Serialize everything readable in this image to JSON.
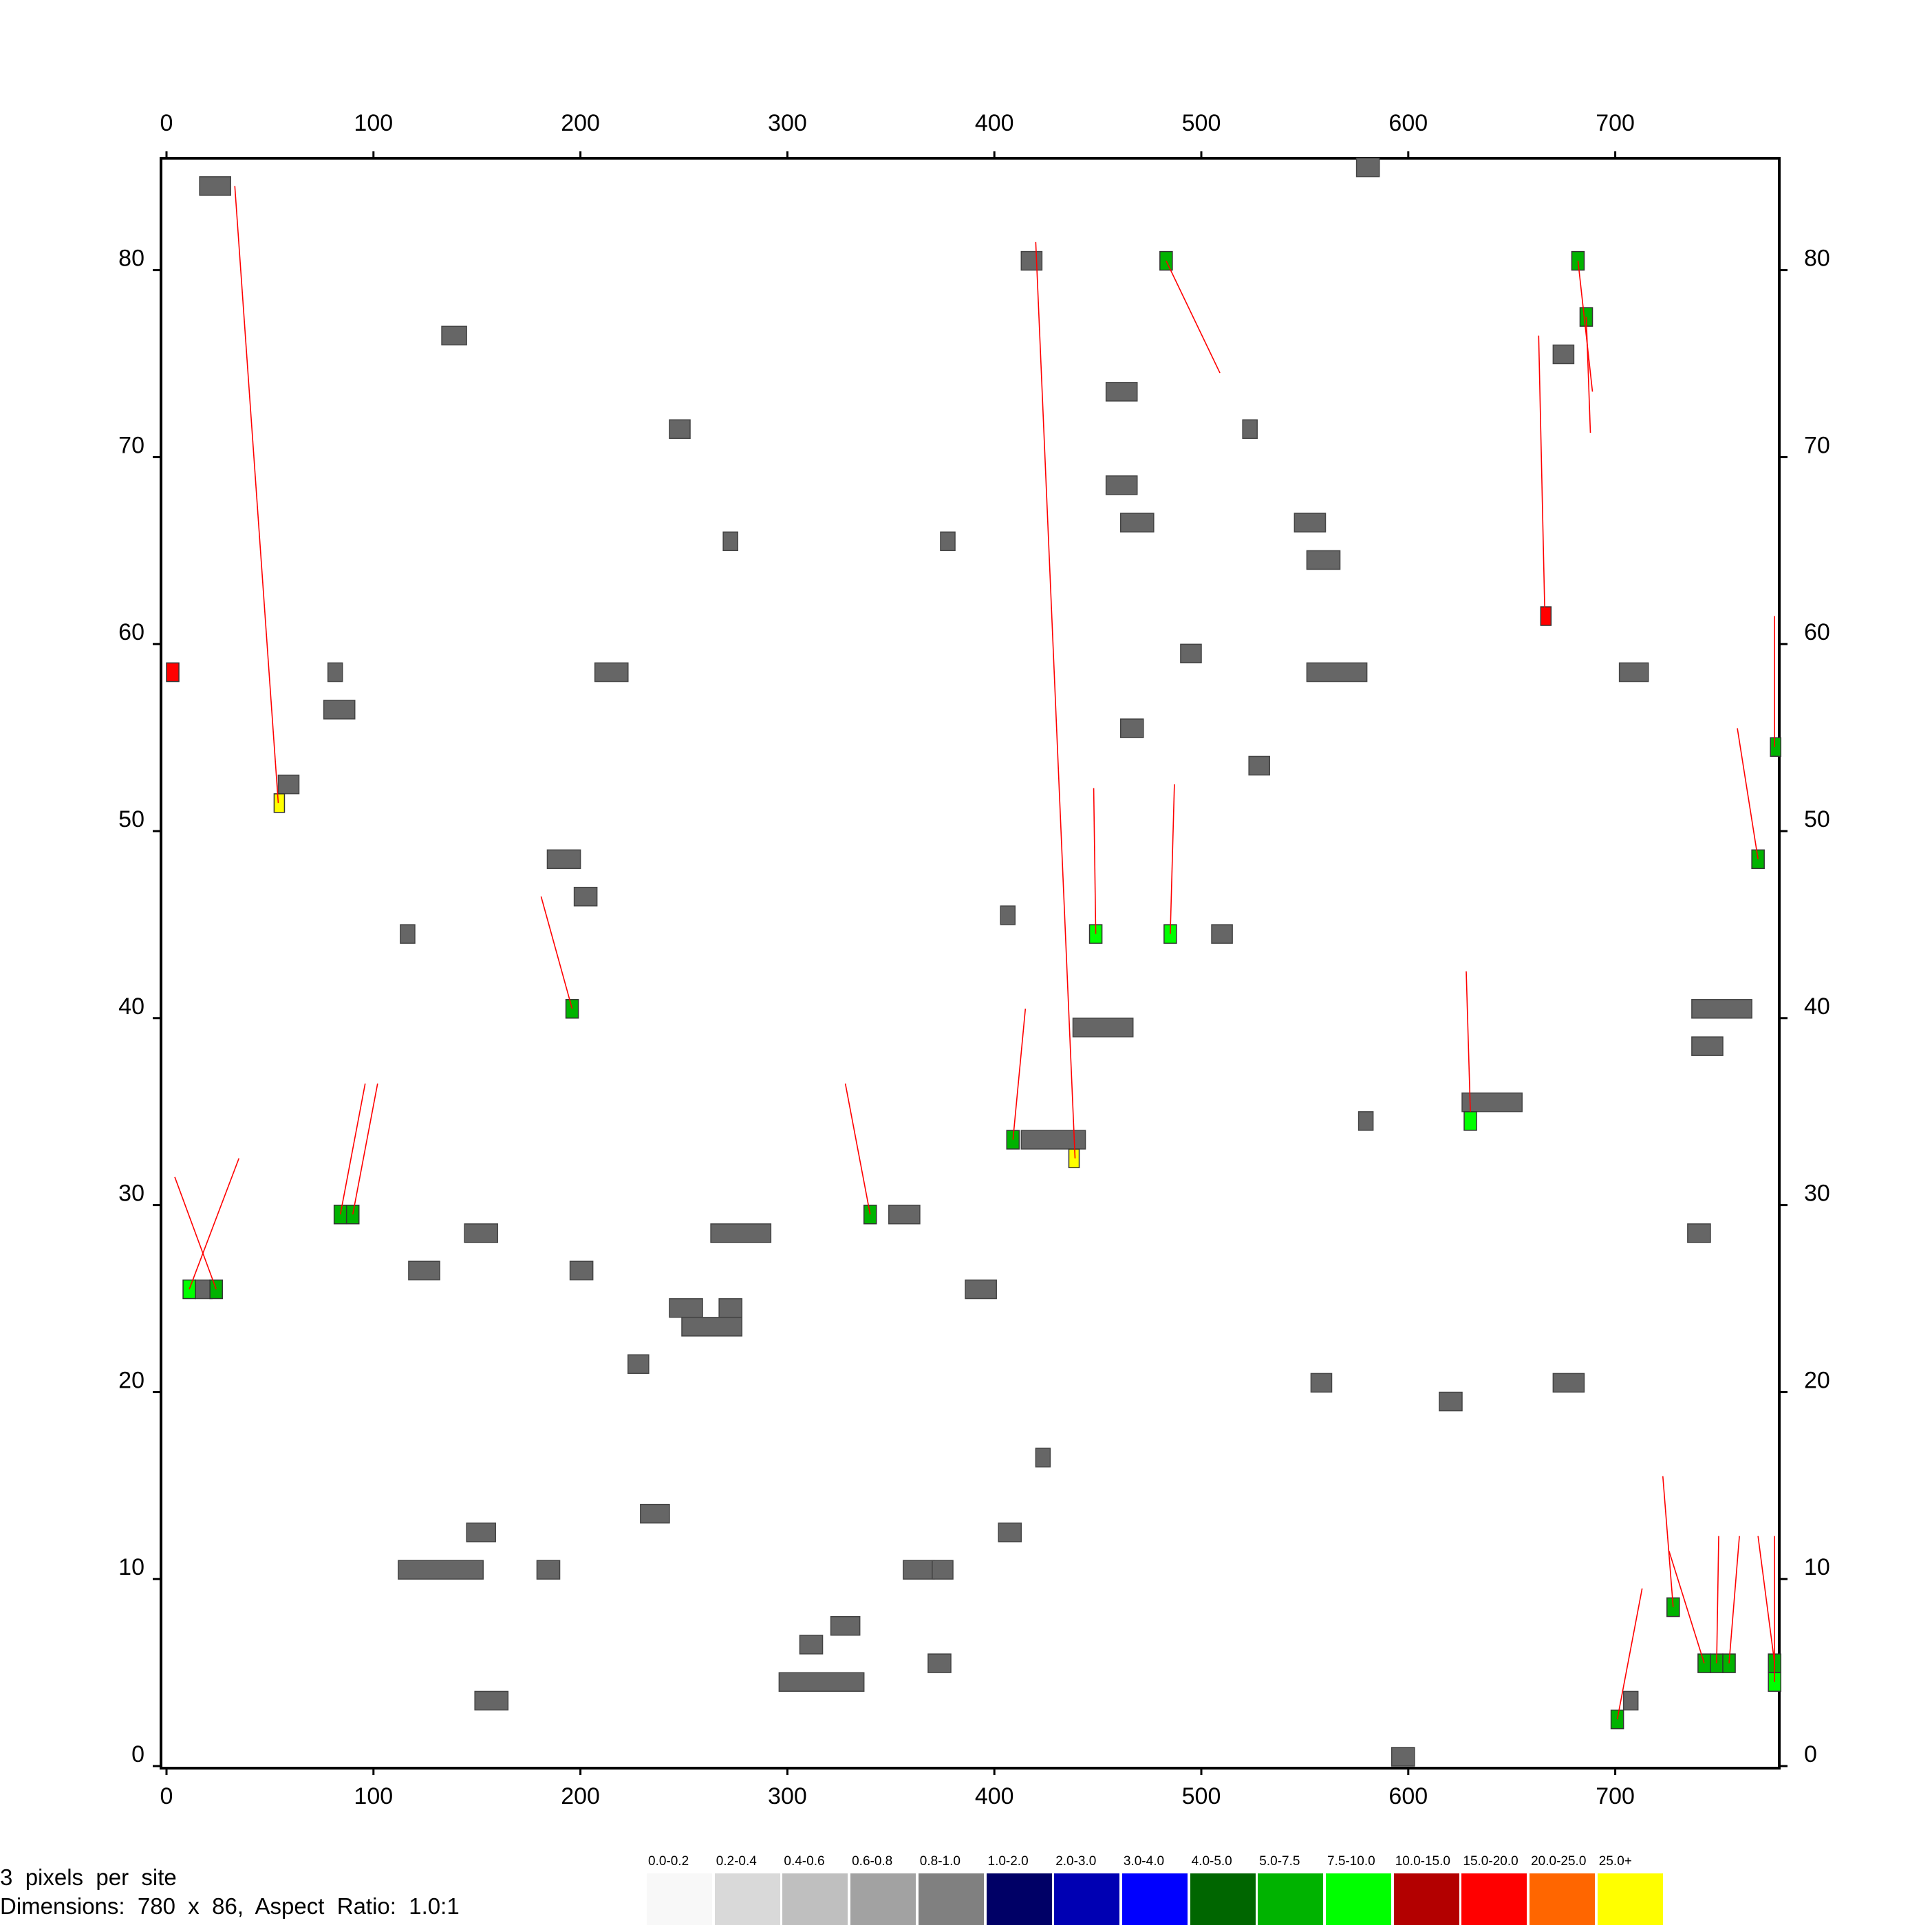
{
  "info": {
    "line1": "3  pixels  per  site",
    "line2": "Dimensions:  780  x  86,  Aspect  Ratio:  1.0:1"
  },
  "legend": [
    {
      "label": "0.0-0.2",
      "color": "#f8f8f8"
    },
    {
      "label": "0.2-0.4",
      "color": "#d9d9d9"
    },
    {
      "label": "0.4-0.6",
      "color": "#bfbfbf"
    },
    {
      "label": "0.6-0.8",
      "color": "#a2a2a2"
    },
    {
      "label": "0.8-1.0",
      "color": "#808080"
    },
    {
      "label": "1.0-2.0",
      "color": "#000066"
    },
    {
      "label": "2.0-3.0",
      "color": "#0000b3"
    },
    {
      "label": "3.0-4.0",
      "color": "#0000ff"
    },
    {
      "label": "4.0-5.0",
      "color": "#006600"
    },
    {
      "label": "5.0-7.5",
      "color": "#00b300"
    },
    {
      "label": "7.5-10.0",
      "color": "#00ff00"
    },
    {
      "label": "10.0-15.0",
      "color": "#b30000"
    },
    {
      "label": "15.0-20.0",
      "color": "#ff0000"
    },
    {
      "label": "20.0-25.0",
      "color": "#ff6600"
    },
    {
      "label": "25.0+",
      "color": "#ffff00"
    }
  ],
  "chart_data": {
    "type": "scatter",
    "title": "",
    "xlabel": "",
    "ylabel": "",
    "xlim": [
      0,
      780
    ],
    "ylim": [
      0,
      86
    ],
    "xticks": [
      0,
      100,
      200,
      300,
      400,
      500,
      600,
      700
    ],
    "yticks": [
      0,
      10,
      20,
      30,
      40,
      50,
      60,
      70,
      80
    ],
    "grid": false,
    "colors": {
      "gray": "#666666",
      "link": "#ff0000"
    },
    "gray_blocks": [
      {
        "x": 16,
        "y": 84,
        "w": 15
      },
      {
        "x": 575,
        "y": 85,
        "w": 11
      },
      {
        "x": 413,
        "y": 80,
        "w": 10
      },
      {
        "x": 133,
        "y": 76,
        "w": 12
      },
      {
        "x": 670,
        "y": 75,
        "w": 10
      },
      {
        "x": 454,
        "y": 73,
        "w": 15
      },
      {
        "x": 243,
        "y": 71,
        "w": 10
      },
      {
        "x": 520,
        "y": 71,
        "w": 7
      },
      {
        "x": 454,
        "y": 68,
        "w": 15
      },
      {
        "x": 461,
        "y": 66,
        "w": 16
      },
      {
        "x": 545,
        "y": 66,
        "w": 15
      },
      {
        "x": 269,
        "y": 65,
        "w": 7
      },
      {
        "x": 374,
        "y": 65,
        "w": 7
      },
      {
        "x": 551,
        "y": 64,
        "w": 16
      },
      {
        "x": 490,
        "y": 59,
        "w": 10
      },
      {
        "x": 78,
        "y": 58,
        "w": 7
      },
      {
        "x": 207,
        "y": 58,
        "w": 16
      },
      {
        "x": 551,
        "y": 58,
        "w": 29
      },
      {
        "x": 702,
        "y": 58,
        "w": 14
      },
      {
        "x": 76,
        "y": 56,
        "w": 15
      },
      {
        "x": 461,
        "y": 55,
        "w": 11
      },
      {
        "x": 523,
        "y": 53,
        "w": 10
      },
      {
        "x": 54,
        "y": 52,
        "w": 10
      },
      {
        "x": 184,
        "y": 48,
        "w": 16
      },
      {
        "x": 197,
        "y": 46,
        "w": 11
      },
      {
        "x": 403,
        "y": 45,
        "w": 7
      },
      {
        "x": 113,
        "y": 44,
        "w": 7
      },
      {
        "x": 505,
        "y": 44,
        "w": 10
      },
      {
        "x": 737,
        "y": 40,
        "w": 29
      },
      {
        "x": 438,
        "y": 39,
        "w": 29
      },
      {
        "x": 737,
        "y": 38,
        "w": 15
      },
      {
        "x": 626,
        "y": 35,
        "w": 29
      },
      {
        "x": 576,
        "y": 34,
        "w": 7
      },
      {
        "x": 413,
        "y": 33,
        "w": 31
      },
      {
        "x": 349,
        "y": 29,
        "w": 15
      },
      {
        "x": 144,
        "y": 28,
        "w": 16
      },
      {
        "x": 263,
        "y": 28,
        "w": 29
      },
      {
        "x": 735,
        "y": 28,
        "w": 11
      },
      {
        "x": 117,
        "y": 26,
        "w": 15
      },
      {
        "x": 195,
        "y": 26,
        "w": 11
      },
      {
        "x": 14,
        "y": 25,
        "w": 8
      },
      {
        "x": 386,
        "y": 25,
        "w": 15
      },
      {
        "x": 243,
        "y": 24,
        "w": 16
      },
      {
        "x": 267,
        "y": 24,
        "w": 11
      },
      {
        "x": 249,
        "y": 23,
        "w": 29
      },
      {
        "x": 223,
        "y": 21,
        "w": 10
      },
      {
        "x": 553,
        "y": 20,
        "w": 10
      },
      {
        "x": 670,
        "y": 20,
        "w": 15
      },
      {
        "x": 615,
        "y": 19,
        "w": 11
      },
      {
        "x": 420,
        "y": 16,
        "w": 7
      },
      {
        "x": 229,
        "y": 13,
        "w": 14
      },
      {
        "x": 145,
        "y": 12,
        "w": 14
      },
      {
        "x": 402,
        "y": 12,
        "w": 11
      },
      {
        "x": 112,
        "y": 10,
        "w": 41
      },
      {
        "x": 179,
        "y": 10,
        "w": 11
      },
      {
        "x": 356,
        "y": 10,
        "w": 15
      },
      {
        "x": 370,
        "y": 10,
        "w": 10
      },
      {
        "x": 321,
        "y": 7,
        "w": 14
      },
      {
        "x": 306,
        "y": 6,
        "w": 11
      },
      {
        "x": 368,
        "y": 5,
        "w": 11
      },
      {
        "x": 296,
        "y": 4,
        "w": 41
      },
      {
        "x": 149,
        "y": 3,
        "w": 16
      },
      {
        "x": 704,
        "y": 3,
        "w": 7
      },
      {
        "x": 592,
        "y": 0,
        "w": 11
      }
    ],
    "colored_blocks": [
      {
        "x": 0,
        "y": 58,
        "w": 6,
        "color": "#ff0000"
      },
      {
        "x": 52,
        "y": 51,
        "w": 5,
        "color": "#ffff00"
      },
      {
        "x": 480,
        "y": 80,
        "w": 6,
        "color": "#00b300"
      },
      {
        "x": 679,
        "y": 80,
        "w": 6,
        "color": "#00b300"
      },
      {
        "x": 683,
        "y": 77,
        "w": 6,
        "color": "#00b300"
      },
      {
        "x": 664,
        "y": 61,
        "w": 5,
        "color": "#ff0000"
      },
      {
        "x": 775,
        "y": 54,
        "w": 5,
        "color": "#00b300"
      },
      {
        "x": 766,
        "y": 48,
        "w": 6,
        "color": "#00b300"
      },
      {
        "x": 446,
        "y": 44,
        "w": 6,
        "color": "#00ff00"
      },
      {
        "x": 482,
        "y": 44,
        "w": 6,
        "color": "#00ff00"
      },
      {
        "x": 193,
        "y": 40,
        "w": 6,
        "color": "#00b300"
      },
      {
        "x": 627,
        "y": 34,
        "w": 6,
        "color": "#00ff00"
      },
      {
        "x": 406,
        "y": 33,
        "w": 6,
        "color": "#00b300"
      },
      {
        "x": 436,
        "y": 32,
        "w": 5,
        "color": "#ffff00"
      },
      {
        "x": 81,
        "y": 29,
        "w": 6,
        "color": "#00b300"
      },
      {
        "x": 87,
        "y": 29,
        "w": 6,
        "color": "#00b300"
      },
      {
        "x": 337,
        "y": 29,
        "w": 6,
        "color": "#00b300"
      },
      {
        "x": 8,
        "y": 25,
        "w": 6,
        "color": "#00ff00"
      },
      {
        "x": 21,
        "y": 25,
        "w": 6,
        "color": "#00b300"
      },
      {
        "x": 725,
        "y": 8,
        "w": 6,
        "color": "#00b300"
      },
      {
        "x": 740,
        "y": 5,
        "w": 6,
        "color": "#00b300"
      },
      {
        "x": 746,
        "y": 5,
        "w": 6,
        "color": "#00b300"
      },
      {
        "x": 752,
        "y": 5,
        "w": 6,
        "color": "#00b300"
      },
      {
        "x": 774,
        "y": 5,
        "w": 6,
        "color": "#00b300"
      },
      {
        "x": 774,
        "y": 4,
        "w": 6,
        "color": "#00ff00"
      },
      {
        "x": 698,
        "y": 2,
        "w": 6,
        "color": "#00b300"
      }
    ],
    "links": [
      [
        33,
        84.5,
        54,
        51.5
      ],
      [
        420,
        81.5,
        439,
        32.5
      ],
      [
        483,
        80.5,
        509,
        74.5
      ],
      [
        682,
        80.5,
        689,
        73.5
      ],
      [
        686,
        77.5,
        688,
        71.3
      ],
      [
        666,
        61.5,
        663,
        76.5
      ],
      [
        777,
        54.5,
        777,
        61.5
      ],
      [
        769,
        48.5,
        759,
        55.5
      ],
      [
        449,
        44.5,
        448,
        52.3
      ],
      [
        485,
        44.5,
        487,
        52.5
      ],
      [
        196,
        40.5,
        181,
        46.5
      ],
      [
        630,
        35,
        628,
        42.5
      ],
      [
        409,
        33.5,
        415,
        40.5
      ],
      [
        84,
        29.5,
        96,
        36.5
      ],
      [
        90,
        29.5,
        102,
        36.5
      ],
      [
        340,
        29.5,
        328,
        36.5
      ],
      [
        11,
        25.5,
        35,
        32.5
      ],
      [
        24,
        25.5,
        4,
        31.5
      ],
      [
        728,
        8.5,
        723,
        15.5
      ],
      [
        743,
        5.5,
        726,
        11.5
      ],
      [
        749,
        5.5,
        750,
        12.3
      ],
      [
        755,
        5.5,
        760,
        12.3
      ],
      [
        777,
        5.5,
        769,
        12.3
      ],
      [
        777,
        4.5,
        777,
        12.3
      ],
      [
        701,
        2.5,
        713,
        9.5
      ]
    ]
  }
}
